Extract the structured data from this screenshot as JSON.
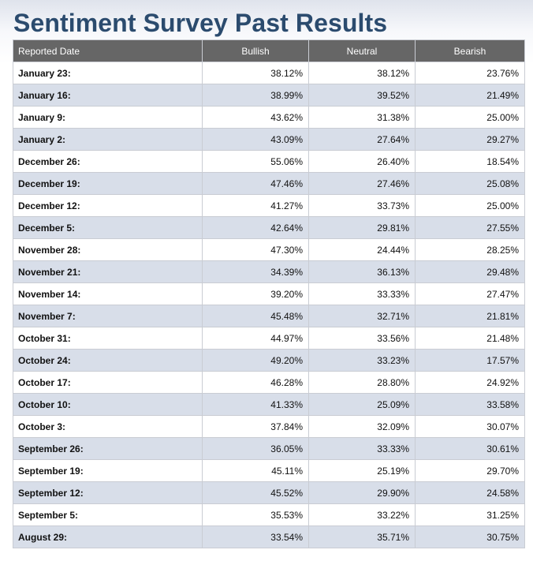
{
  "page": {
    "title": "Sentiment Survey Past Results"
  },
  "table": {
    "headers": [
      "Reported Date",
      "Bullish",
      "Neutral",
      "Bearish"
    ],
    "rows": [
      {
        "date": "January 23:",
        "bullish": "38.12%",
        "neutral": "38.12%",
        "bearish": "23.76%"
      },
      {
        "date": "January 16:",
        "bullish": "38.99%",
        "neutral": "39.52%",
        "bearish": "21.49%"
      },
      {
        "date": "January 9:",
        "bullish": "43.62%",
        "neutral": "31.38%",
        "bearish": "25.00%"
      },
      {
        "date": "January 2:",
        "bullish": "43.09%",
        "neutral": "27.64%",
        "bearish": "29.27%"
      },
      {
        "date": "December 26:",
        "bullish": "55.06%",
        "neutral": "26.40%",
        "bearish": "18.54%"
      },
      {
        "date": "December 19:",
        "bullish": "47.46%",
        "neutral": "27.46%",
        "bearish": "25.08%"
      },
      {
        "date": "December 12:",
        "bullish": "41.27%",
        "neutral": "33.73%",
        "bearish": "25.00%"
      },
      {
        "date": "December 5:",
        "bullish": "42.64%",
        "neutral": "29.81%",
        "bearish": "27.55%"
      },
      {
        "date": "November 28:",
        "bullish": "47.30%",
        "neutral": "24.44%",
        "bearish": "28.25%"
      },
      {
        "date": "November 21:",
        "bullish": "34.39%",
        "neutral": "36.13%",
        "bearish": "29.48%"
      },
      {
        "date": "November 14:",
        "bullish": "39.20%",
        "neutral": "33.33%",
        "bearish": "27.47%"
      },
      {
        "date": "November 7:",
        "bullish": "45.48%",
        "neutral": "32.71%",
        "bearish": "21.81%"
      },
      {
        "date": "October 31:",
        "bullish": "44.97%",
        "neutral": "33.56%",
        "bearish": "21.48%"
      },
      {
        "date": "October 24:",
        "bullish": "49.20%",
        "neutral": "33.23%",
        "bearish": "17.57%"
      },
      {
        "date": "October 17:",
        "bullish": "46.28%",
        "neutral": "28.80%",
        "bearish": "24.92%"
      },
      {
        "date": "October 10:",
        "bullish": "41.33%",
        "neutral": "25.09%",
        "bearish": "33.58%"
      },
      {
        "date": "October 3:",
        "bullish": "37.84%",
        "neutral": "32.09%",
        "bearish": "30.07%"
      },
      {
        "date": "September 26:",
        "bullish": "36.05%",
        "neutral": "33.33%",
        "bearish": "30.61%"
      },
      {
        "date": "September 19:",
        "bullish": "45.11%",
        "neutral": "25.19%",
        "bearish": "29.70%"
      },
      {
        "date": "September 12:",
        "bullish": "45.52%",
        "neutral": "29.90%",
        "bearish": "24.58%"
      },
      {
        "date": "September 5:",
        "bullish": "35.53%",
        "neutral": "33.22%",
        "bearish": "31.25%"
      },
      {
        "date": "August 29:",
        "bullish": "33.54%",
        "neutral": "35.71%",
        "bearish": "30.75%"
      }
    ]
  },
  "colors": {
    "title": "#2b4b6e",
    "header_bg": "#666666",
    "header_text": "#ffffff",
    "row_alt_bg": "#d8dee9",
    "row_bg": "#ffffff",
    "border": "#c9ccd3"
  }
}
